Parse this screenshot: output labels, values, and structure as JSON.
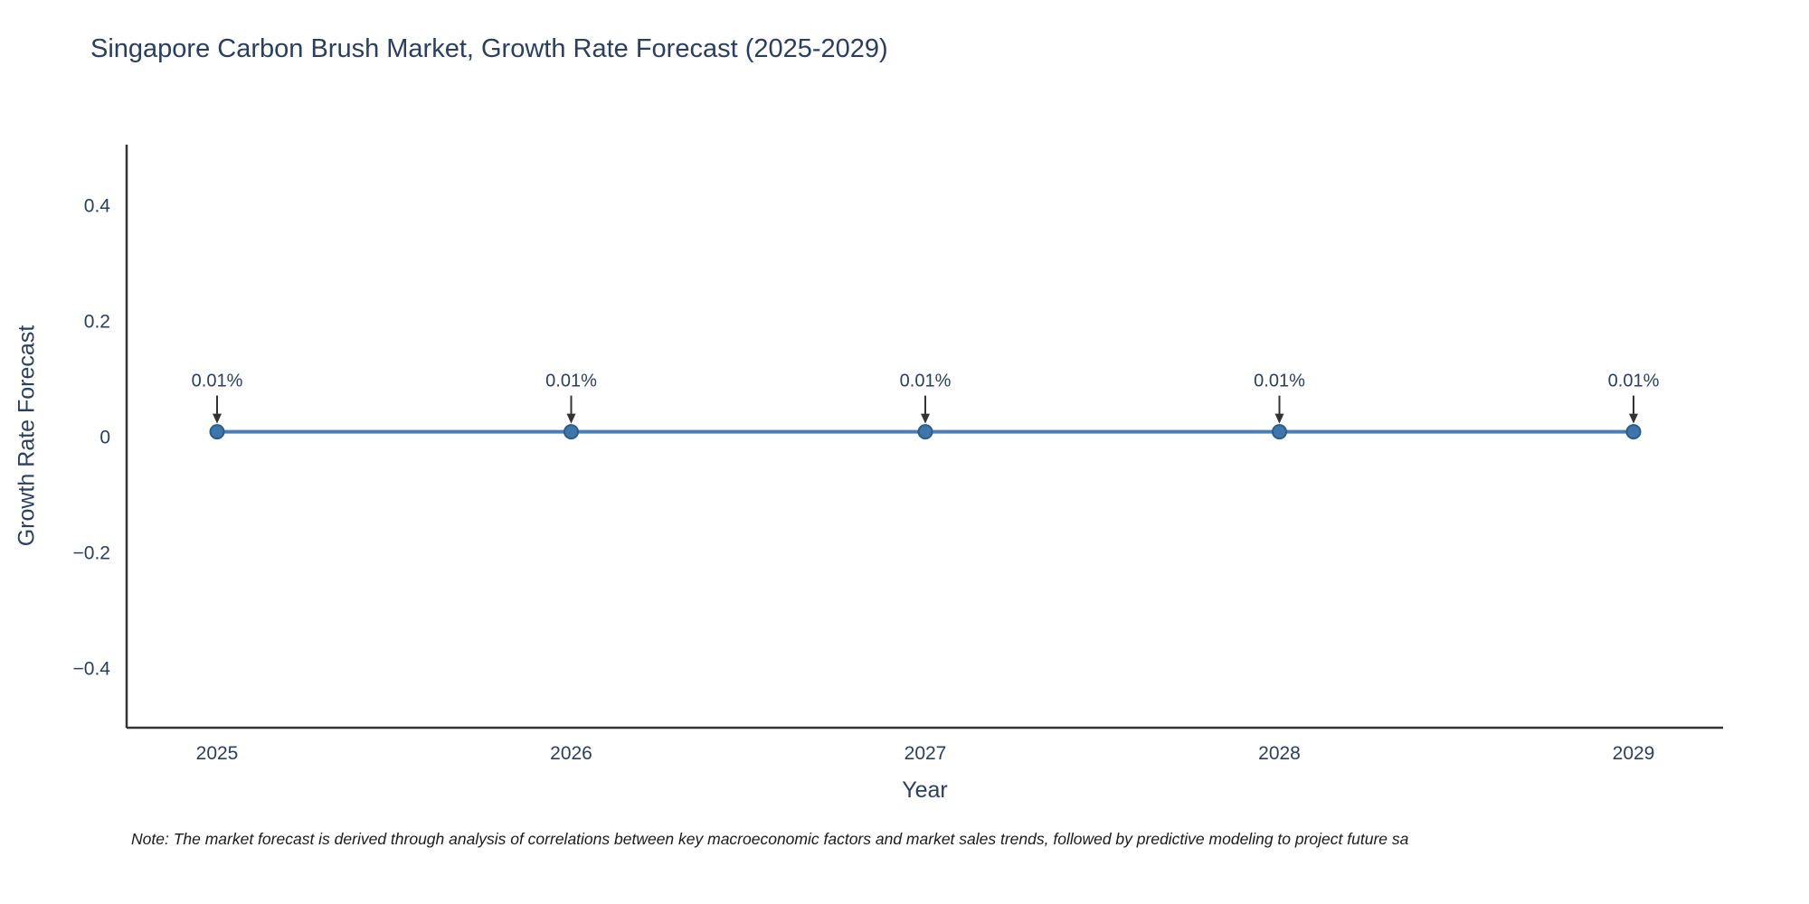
{
  "chart_data": {
    "type": "line",
    "title": "Singapore Carbon Brush Market, Growth Rate Forecast (2025-2029)",
    "xlabel": "Year",
    "ylabel": "Growth Rate Forecast",
    "x": [
      2025,
      2026,
      2027,
      2028,
      2029
    ],
    "series": [
      {
        "name": "Growth Rate Forecast",
        "values": [
          0.01,
          0.01,
          0.01,
          0.01,
          0.01
        ]
      }
    ],
    "point_labels": [
      "0.01%",
      "0.01%",
      "0.01%",
      "0.01%",
      "0.01%"
    ],
    "xticks": [
      "2025",
      "2026",
      "2027",
      "2028",
      "2029"
    ],
    "yticks": [
      0.4,
      0.2,
      0,
      -0.2,
      -0.4
    ],
    "ylim": [
      -0.5,
      0.51
    ],
    "grid": false,
    "legend": false,
    "line_color": "#4a7db8",
    "marker_fill": "#3e76ac",
    "marker_edge": "#2b5c8a",
    "annotation_color": "#2a3f5f",
    "arrow_color": "#333333",
    "axis_color": "#333333",
    "tick_label_color": "#2a3f5f",
    "title_color": "#2a3f5f"
  },
  "footnote": "Note: The market forecast is derived through analysis of correlations between key macroeconomic factors and market sales trends, followed by predictive modeling to project future sa"
}
